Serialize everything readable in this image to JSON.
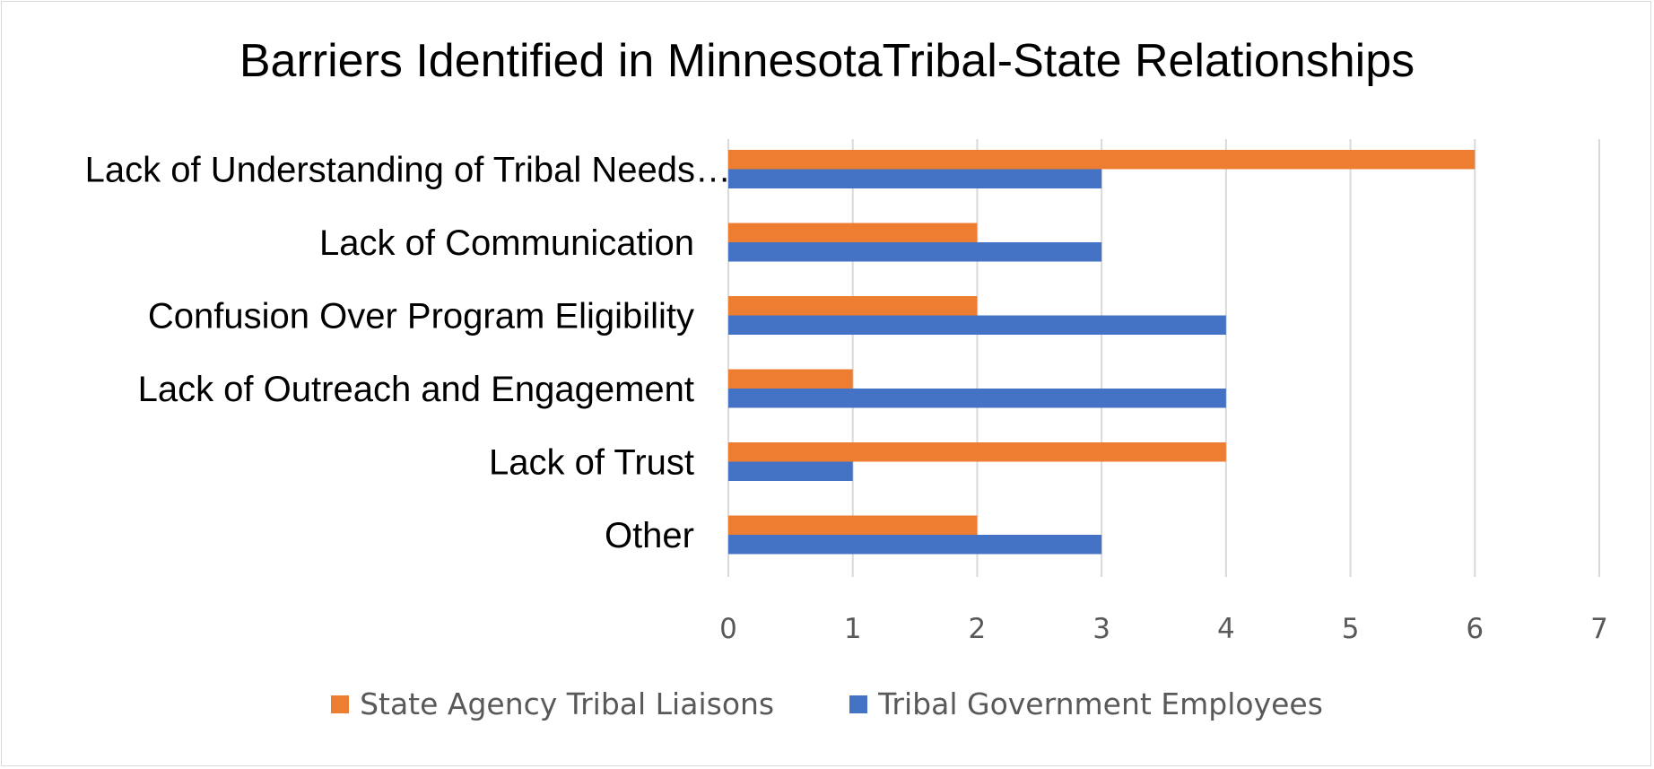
{
  "chart_data": {
    "type": "bar",
    "orientation": "horizontal",
    "title": "Barriers Identified in MinnesotaTribal-State Relationships",
    "categories": [
      "Lack of Understanding of Tribal Needs…",
      "Lack of Communication",
      "Confusion Over Program Eligibility",
      "Lack of Outreach and Engagement",
      "Lack of Trust",
      "Other"
    ],
    "series": [
      {
        "name": "State Agency Tribal Liaisons",
        "color": "#ED7D31",
        "values": [
          6,
          2,
          2,
          1,
          4,
          2
        ]
      },
      {
        "name": "Tribal Government Employees",
        "color": "#4472C4",
        "values": [
          3,
          3,
          4,
          4,
          1,
          3
        ]
      }
    ],
    "xlim": [
      0,
      7
    ],
    "xticks": [
      "0",
      "1",
      "2",
      "3",
      "4",
      "5",
      "6",
      "7"
    ],
    "grid": true,
    "gridline_color": "#d9d9d9",
    "legend_position": "bottom"
  }
}
